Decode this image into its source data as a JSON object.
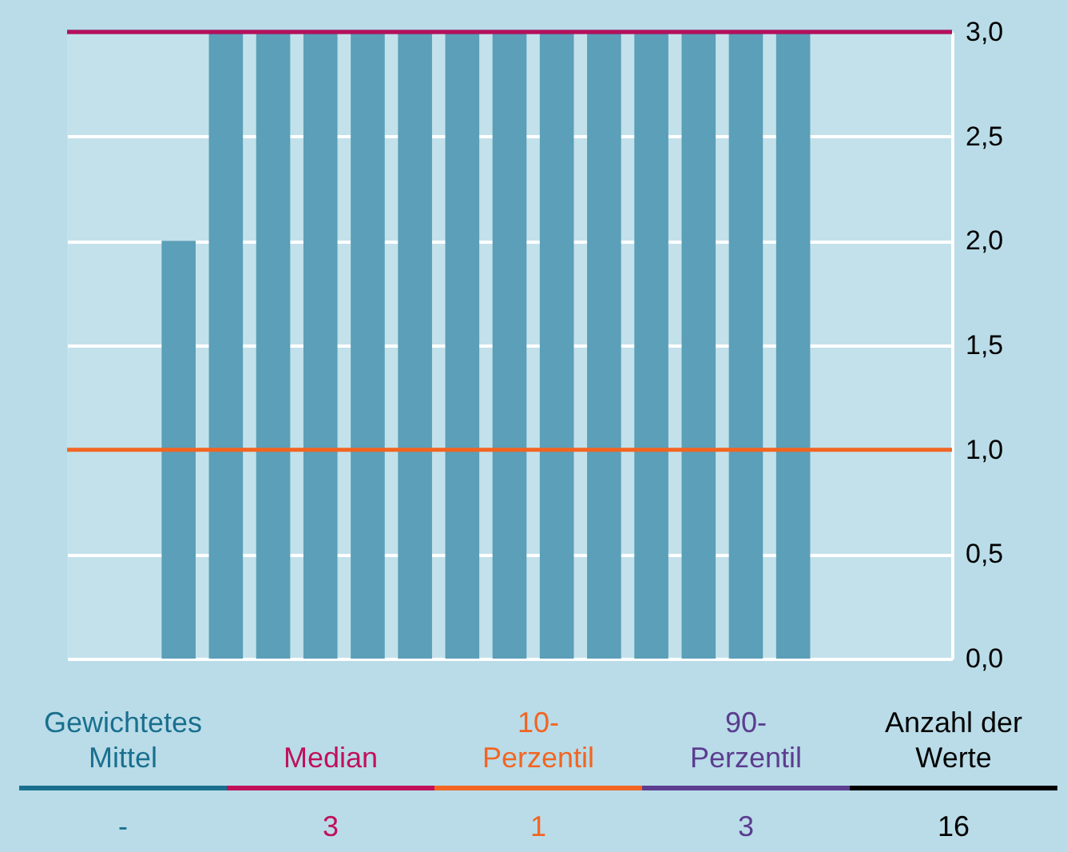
{
  "chart_data": {
    "type": "bar",
    "categories": [
      null,
      null,
      null,
      null,
      null,
      null,
      null,
      null,
      null,
      null,
      null,
      null,
      null,
      null,
      null,
      null,
      null,
      null,
      null
    ],
    "values": [
      null,
      null,
      2,
      3,
      3,
      3,
      3,
      3,
      3,
      3,
      3,
      3,
      3,
      3,
      3,
      3,
      null,
      null,
      null
    ],
    "color": "#5b9fb8",
    "ylim": [
      0,
      3
    ],
    "yticks": [
      {
        "value": 0,
        "label": "0,0"
      },
      {
        "value": 0.5,
        "label": "0,5"
      },
      {
        "value": 1,
        "label": "1,0"
      },
      {
        "value": 1.5,
        "label": "1,5"
      },
      {
        "value": 2,
        "label": "2,0"
      },
      {
        "value": 2.5,
        "label": "2,5"
      },
      {
        "value": 3,
        "label": "3,0"
      }
    ],
    "grid": "y",
    "ref_lines": [
      {
        "axis": "y",
        "value": 3,
        "color": "#5c3d8f"
      },
      {
        "axis": "y",
        "value": 1,
        "color": "#f26522"
      },
      {
        "axis": "y",
        "value": 3,
        "color": "#b5105a"
      }
    ],
    "annotations": [
      "Gewichtetes Mittel",
      "-",
      "Median",
      "3",
      "10-Perzentil",
      "1",
      "90-Perzentil",
      "3",
      "Anzahl der Werte",
      "16"
    ]
  }
}
